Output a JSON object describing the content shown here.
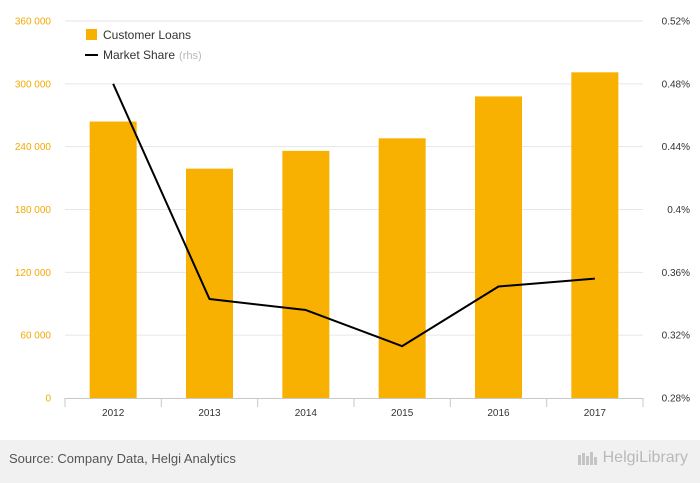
{
  "chart_data": {
    "type": "bar",
    "categories": [
      "2012",
      "2013",
      "2014",
      "2015",
      "2016",
      "2017"
    ],
    "series": [
      {
        "name": "Customer Loans",
        "type": "bar",
        "axis": "left",
        "color": "#f8b100",
        "values": [
          264000,
          219000,
          236000,
          248000,
          288000,
          311000
        ]
      },
      {
        "name": "Market Share",
        "name_note": "(rhs)",
        "type": "line",
        "axis": "right",
        "color": "#000000",
        "values": [
          0.48,
          0.343,
          0.336,
          0.313,
          0.351,
          0.356
        ]
      }
    ],
    "y_left": {
      "min": 0,
      "max": 360000,
      "ticks": [
        0,
        60000,
        120000,
        180000,
        240000,
        300000,
        360000
      ],
      "tick_labels": [
        "0",
        "60 000",
        "120 000",
        "180 000",
        "240 000",
        "300 000",
        "360 000"
      ],
      "color": "#f5a800"
    },
    "y_right": {
      "min": 0.28,
      "max": 0.52,
      "ticks": [
        0.28,
        0.32,
        0.36,
        0.4,
        0.44,
        0.48,
        0.52
      ],
      "tick_labels": [
        "0.28%",
        "0.32%",
        "0.36%",
        "0.4%",
        "0.44%",
        "0.48%",
        "0.52%"
      ]
    },
    "grid": true,
    "legend": "top-left"
  },
  "footer": {
    "source": "Source: Company Data, Helgi Analytics",
    "brand": "HelgiLibrary"
  }
}
